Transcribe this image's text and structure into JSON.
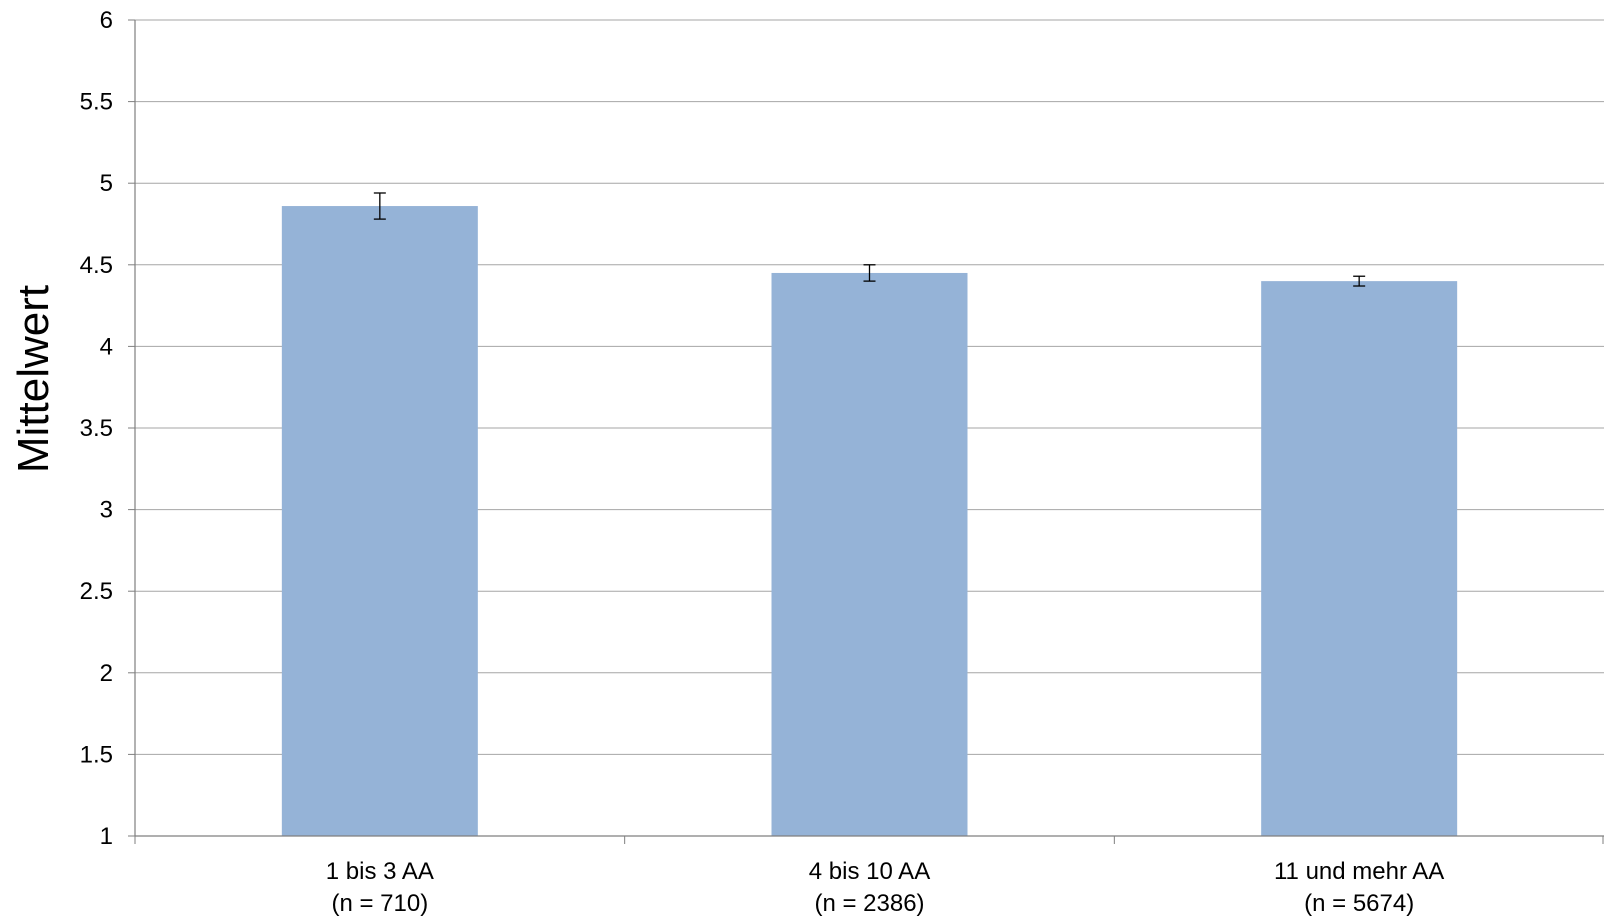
{
  "chart_data": {
    "type": "bar",
    "title": "",
    "xlabel": "",
    "ylabel": "Mittelwert",
    "ylim": [
      1,
      6
    ],
    "yticks": [
      "1",
      "1.5",
      "2",
      "2.5",
      "3",
      "3.5",
      "4",
      "4.5",
      "5",
      "5.5",
      "6"
    ],
    "grid": true,
    "legend": "none",
    "categories": [
      {
        "label": "1 bis 3 AA",
        "n_label": "(n = 710)"
      },
      {
        "label": "4 bis 10 AA",
        "n_label": "(n = 2386)"
      },
      {
        "label": "11 und mehr AA",
        "n_label": "(n = 5674)"
      }
    ],
    "values": [
      4.86,
      4.45,
      4.4
    ],
    "error_low": [
      4.78,
      4.4,
      4.37
    ],
    "error_high": [
      4.94,
      4.5,
      4.43
    ],
    "colors": {
      "bar": "#95b3d7",
      "grid": "#a6a6a6",
      "axis": "#7f7f7f",
      "error": "#000000"
    }
  }
}
